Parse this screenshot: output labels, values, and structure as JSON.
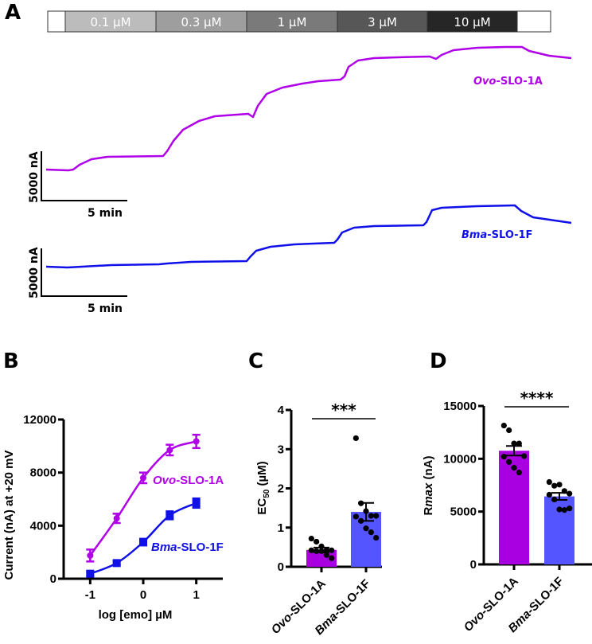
{
  "colors": {
    "ovo": "#A800E0",
    "ovo_line": "#B000E8",
    "bma": "#1010E8",
    "bma_bar": "#5555FF",
    "conc_shades": [
      "#ffffff",
      "#bcbcbc",
      "#9e9e9e",
      "#7a7a7a",
      "#575757",
      "#262626",
      "#ffffff"
    ]
  },
  "panels": {
    "a": "A",
    "b": "B",
    "c": "C",
    "d": "D"
  },
  "concentration_bar": {
    "labels": [
      "",
      "0.1 µM",
      "0.3 µM",
      "1 µM",
      "3 µM",
      "10 µM",
      ""
    ]
  },
  "traces": {
    "ovo_label_italic": "Ovo",
    "ovo_label_rest": "-SLO-1A",
    "bma_label_italic": "Bma",
    "bma_label_rest": "-SLO-1F",
    "scale_y": "5000 nA",
    "scale_x": "5 min"
  },
  "chart_data": [
    {
      "id": "B",
      "type": "line",
      "title": "",
      "xlabel": "log [emo] µM",
      "ylabel": "Current (nA) at +20 mV",
      "xlim": [
        -1.5,
        1.5
      ],
      "ylim": [
        0,
        12000
      ],
      "xticks": [
        -1,
        0,
        1
      ],
      "xtick_labels": [
        "-1",
        "0",
        "1"
      ],
      "yticks": [
        0,
        4000,
        8000,
        12000
      ],
      "ytick_labels": [
        "0",
        "4000",
        "8000",
        "12000"
      ],
      "x": [
        -1,
        -0.5,
        0,
        0.5,
        1
      ],
      "series": [
        {
          "name": "Ovo-SLO-1A",
          "name_italic": "Ovo",
          "name_rest": "-SLO-1A",
          "marker": "circle",
          "values": [
            1750,
            4550,
            7600,
            9700,
            10350
          ],
          "errors": [
            450,
            350,
            400,
            400,
            500
          ]
        },
        {
          "name": "Bma-SLO-1F",
          "name_italic": "Bma",
          "name_rest": "-SLO-1F",
          "marker": "square",
          "values": [
            380,
            1180,
            2760,
            4780,
            5700
          ],
          "errors": [
            150,
            150,
            250,
            300,
            350
          ]
        }
      ]
    },
    {
      "id": "C",
      "type": "bar",
      "xlabel": "",
      "ylabel": "EC50 (µM)",
      "ylabel_main": "EC",
      "ylabel_sub": "50",
      "ylabel_unit": " (µM)",
      "ylim": [
        0,
        4
      ],
      "yticks": [
        0,
        1,
        2,
        3,
        4
      ],
      "ytick_labels": [
        "0",
        "1",
        "2",
        "3",
        "4"
      ],
      "categories": [
        "Ovo-SLO-1A",
        "Bma-SLO-1F"
      ],
      "category_italic": [
        "Ovo",
        "Bma"
      ],
      "category_rest": [
        "-SLO-1A",
        "-SLO-1F"
      ],
      "values": [
        0.43,
        1.4
      ],
      "errors": [
        0.06,
        0.23
      ],
      "points": [
        [
          0.72,
          0.64,
          0.52,
          0.42,
          0.42,
          0.42,
          0.4,
          0.4,
          0.3,
          0.22
        ],
        [
          3.28,
          1.62,
          1.42,
          1.3,
          1.3,
          1.28,
          1.17,
          0.98,
          0.88,
          0.74
        ]
      ],
      "significance": "***"
    },
    {
      "id": "D",
      "type": "bar",
      "xlabel": "",
      "ylabel": "Rmax (nA)",
      "ylabel_main": "R",
      "ylabel_italic": "max",
      "ylabel_unit": " (nA)",
      "ylim": [
        0,
        15000
      ],
      "yticks": [
        0,
        5000,
        10000,
        15000
      ],
      "ytick_labels": [
        "0",
        "5000",
        "10000",
        "15000"
      ],
      "categories": [
        "Ovo-SLO-1A",
        "Bma-SLO-1F"
      ],
      "category_italic": [
        "Ovo",
        "Bma"
      ],
      "category_rest": [
        "-SLO-1A",
        "-SLO-1F"
      ],
      "values": [
        10760,
        6440
      ],
      "errors": [
        450,
        330
      ],
      "points": [
        [
          13150,
          12700,
          11450,
          11450,
          10250,
          10200,
          9700,
          9150,
          8700
        ],
        [
          7800,
          7450,
          7550,
          6950,
          6700,
          6600,
          6150,
          5200,
          5150,
          5300
        ]
      ],
      "significance": "****"
    }
  ]
}
